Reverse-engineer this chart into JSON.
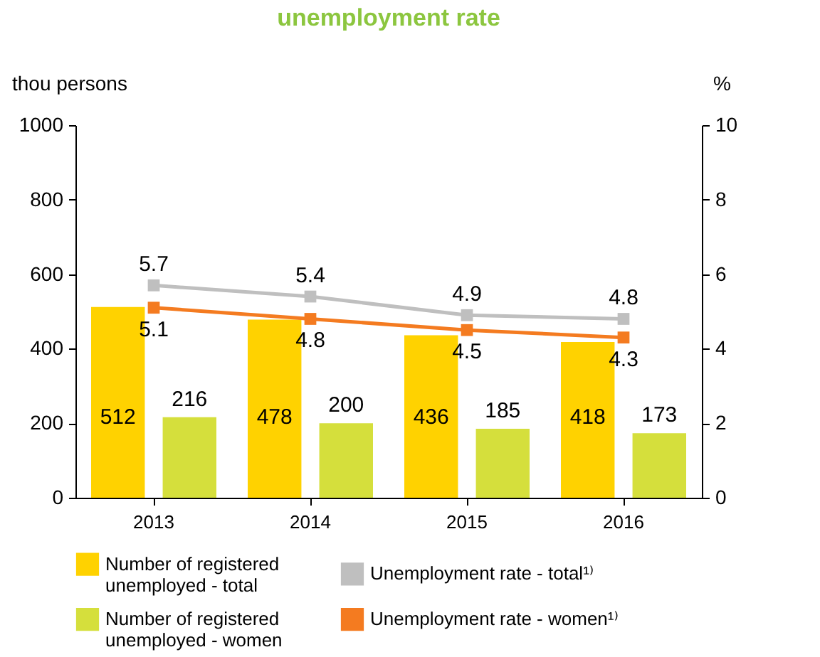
{
  "chart_data": {
    "type": "bar",
    "title": "unemployment rate",
    "ylabel": "thou persons",
    "y2label": "%",
    "categories": [
      "2013",
      "2014",
      "2015",
      "2016"
    ],
    "series": [
      {
        "name": "Number of registered unemployed - total",
        "color": "#ffd200",
        "values": [
          512,
          478,
          436,
          418
        ]
      },
      {
        "name": "Unemployment rate - total¹⁾",
        "type": "line",
        "axis": "y2",
        "color": "#bfbfbf",
        "values": [
          5.7,
          5.4,
          4.9,
          4.8
        ]
      },
      {
        "name": "Number of registered unemployed - women",
        "color": "#d5df3c",
        "values": [
          216,
          200,
          185,
          173
        ]
      },
      {
        "name": "Unemployment rate - women¹⁾",
        "type": "line",
        "axis": "y2",
        "color": "#f47b20",
        "values": [
          5.1,
          4.8,
          4.5,
          4.3
        ]
      }
    ],
    "ylim": [
      0,
      1000
    ],
    "yticks": [
      0,
      200,
      400,
      600,
      800,
      1000
    ],
    "y2lim": [
      0,
      10
    ],
    "y2ticks": [
      0,
      2,
      4,
      6,
      8,
      10
    ],
    "data_labels": true,
    "marker": "square",
    "legend": "bottom",
    "grid": false
  }
}
